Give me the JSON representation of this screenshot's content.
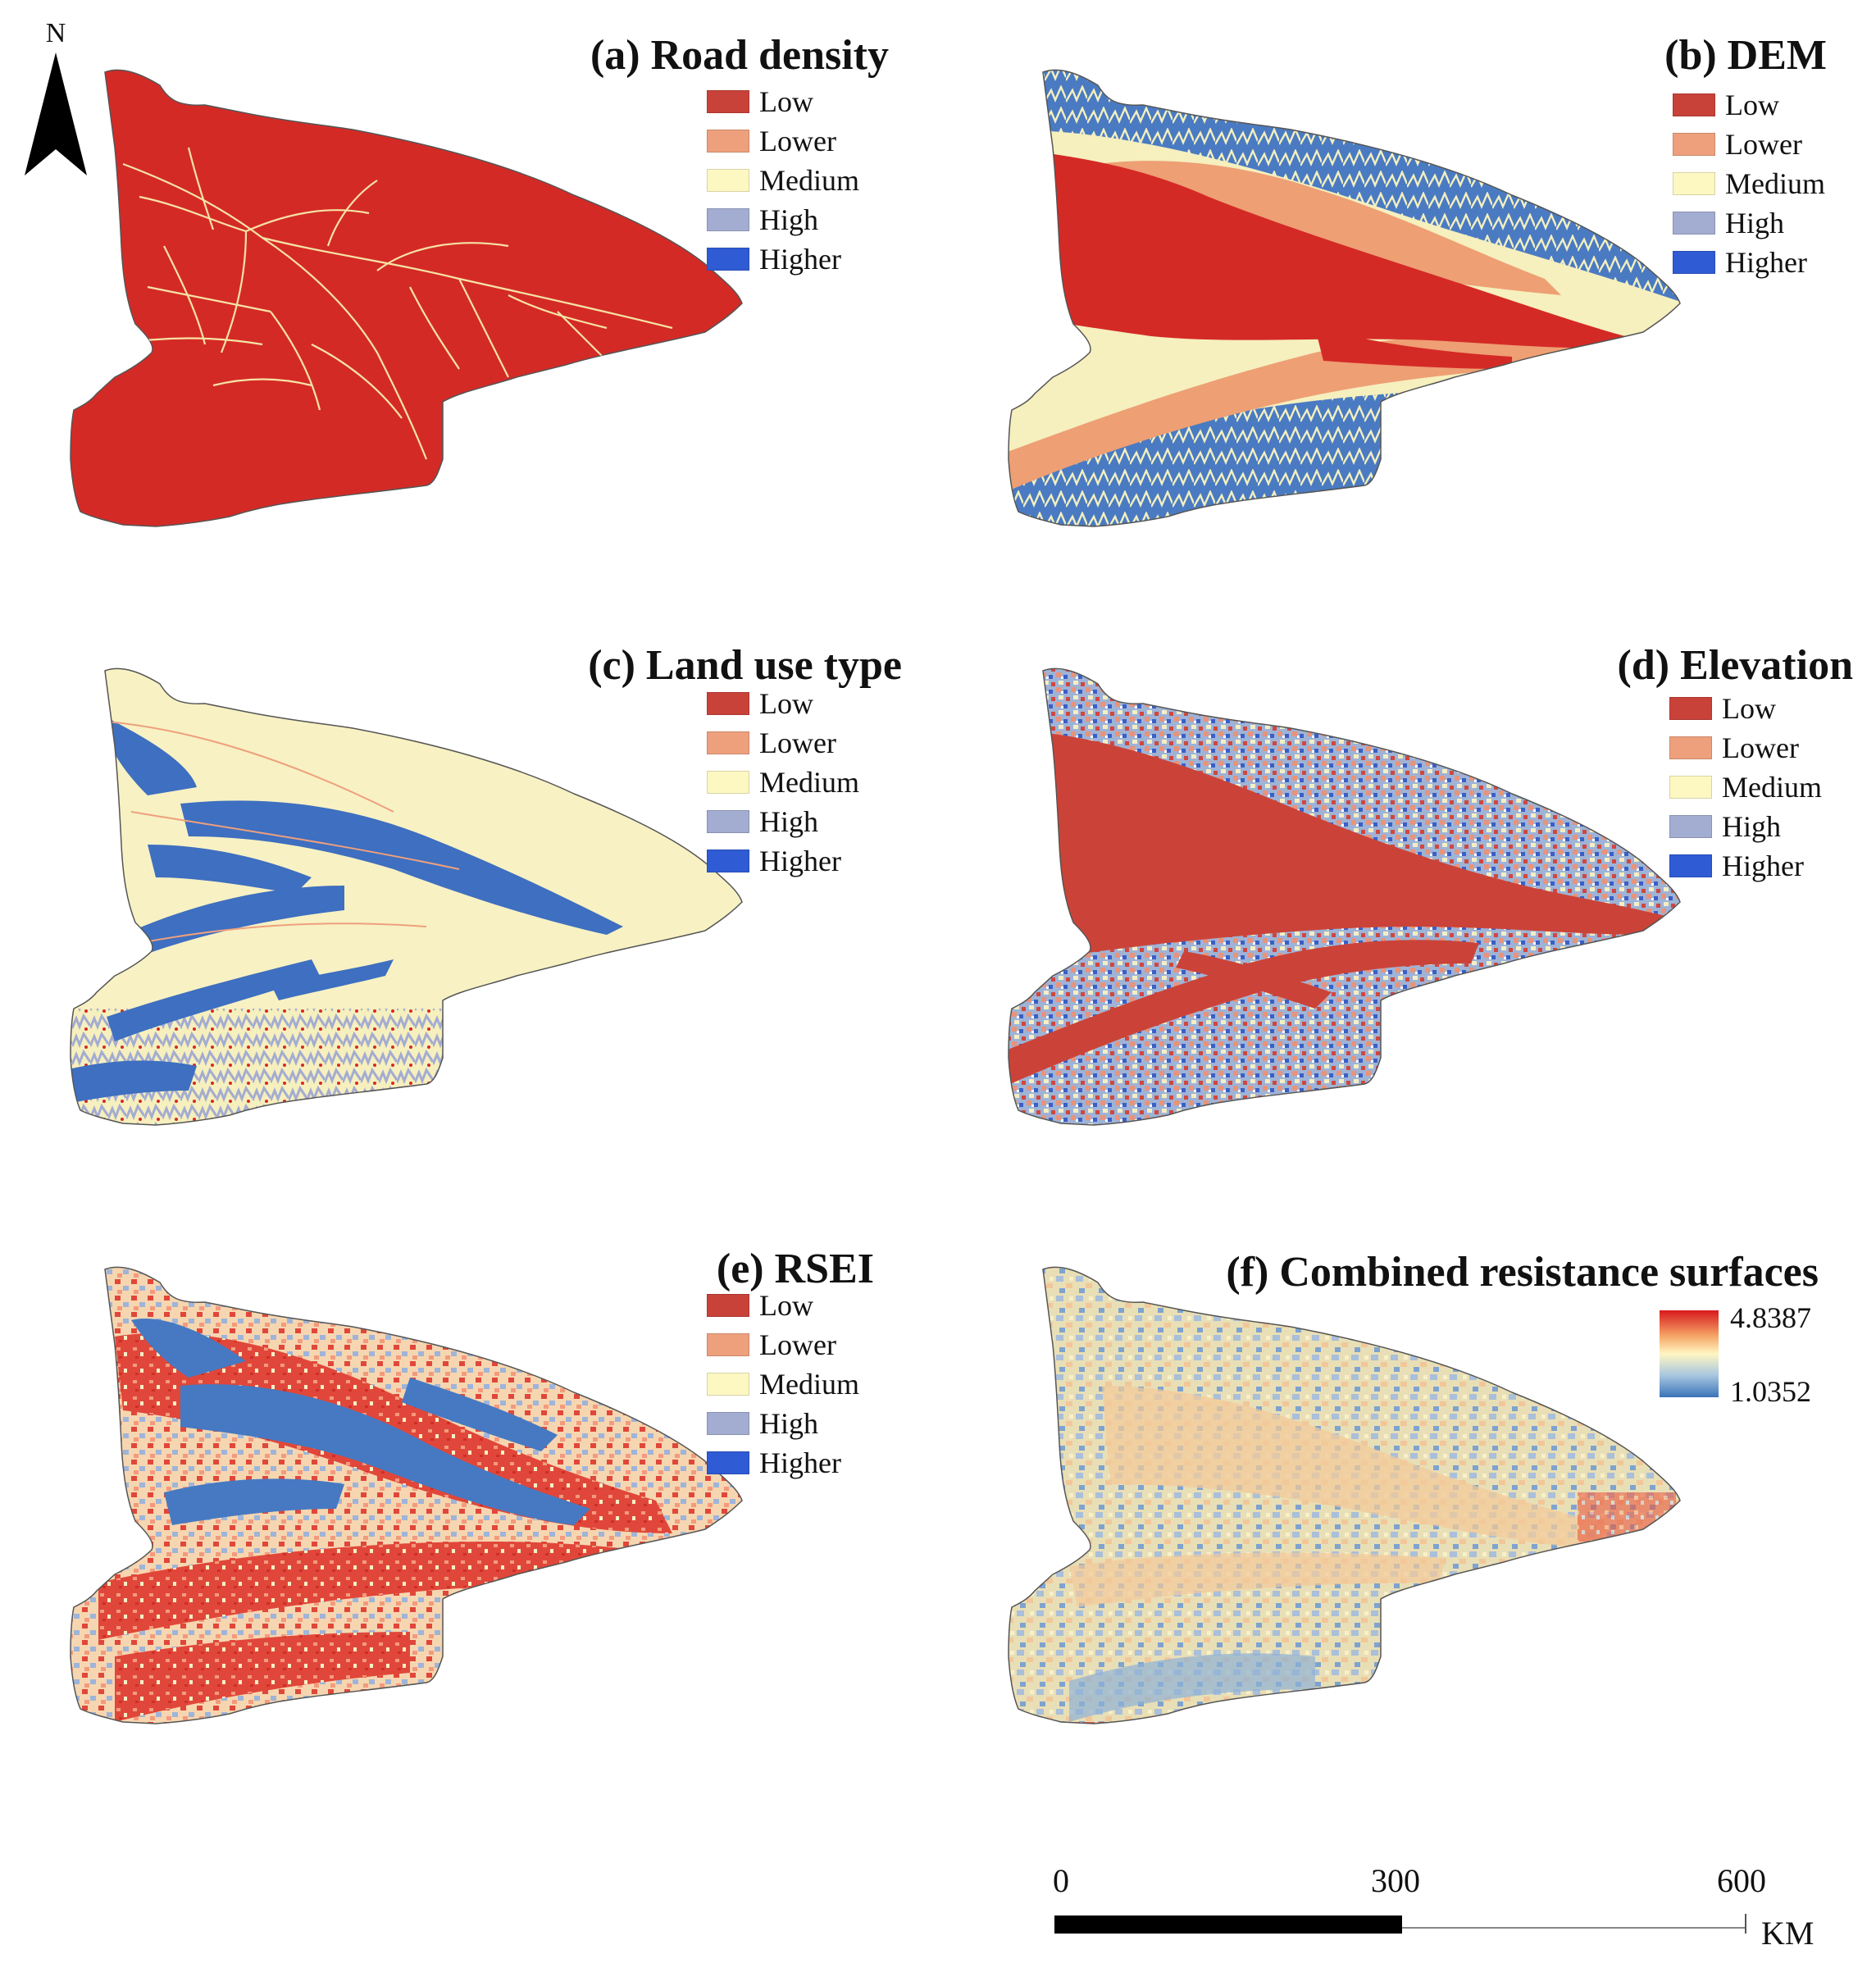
{
  "north_arrow": {
    "letter": "N"
  },
  "panels": [
    {
      "id": "a",
      "title": "(a) Road density",
      "type": "categorical",
      "base_color": "#d42a26",
      "legend": [
        {
          "label": "Low",
          "color": "#c8423a"
        },
        {
          "label": "Lower",
          "color": "#eea07d"
        },
        {
          "label": "Medium",
          "color": "#fdf8c2"
        },
        {
          "label": "High",
          "color": "#a3acd1"
        },
        {
          "label": "Higher",
          "color": "#2f5bd4"
        }
      ]
    },
    {
      "id": "b",
      "title": "(b) DEM",
      "type": "categorical",
      "legend": [
        {
          "label": "Low",
          "color": "#c8423a"
        },
        {
          "label": "Lower",
          "color": "#eea07d"
        },
        {
          "label": "Medium",
          "color": "#fdf8c2"
        },
        {
          "label": "High",
          "color": "#a3acd1"
        },
        {
          "label": "Higher",
          "color": "#2f5bd4"
        }
      ]
    },
    {
      "id": "c",
      "title": "(c) Land use type",
      "type": "categorical",
      "legend": [
        {
          "label": "Low",
          "color": "#c8423a"
        },
        {
          "label": "Lower",
          "color": "#eea07d"
        },
        {
          "label": "Medium",
          "color": "#fdf8c2"
        },
        {
          "label": "High",
          "color": "#a3acd1"
        },
        {
          "label": "Higher",
          "color": "#2f5bd4"
        }
      ]
    },
    {
      "id": "d",
      "title": "(d) Elevation",
      "type": "categorical",
      "legend": [
        {
          "label": "Low",
          "color": "#c8423a"
        },
        {
          "label": "Lower",
          "color": "#eea07d"
        },
        {
          "label": "Medium",
          "color": "#fdf8c2"
        },
        {
          "label": "High",
          "color": "#a3acd1"
        },
        {
          "label": "Higher",
          "color": "#2f5bd4"
        }
      ]
    },
    {
      "id": "e",
      "title": "(e) RSEI",
      "type": "categorical",
      "legend": [
        {
          "label": "Low",
          "color": "#c8423a"
        },
        {
          "label": "Lower",
          "color": "#eea07d"
        },
        {
          "label": "Medium",
          "color": "#fdf8c2"
        },
        {
          "label": "High",
          "color": "#a3acd1"
        },
        {
          "label": "Higher",
          "color": "#2f5bd4"
        }
      ]
    },
    {
      "id": "f",
      "title": "(f) Combined resistance surfaces",
      "type": "continuous",
      "legend_max": "4.8387",
      "legend_min": "1.0352"
    }
  ],
  "scale_bar": {
    "ticks": [
      "0",
      "300",
      "600"
    ],
    "unit": "KM"
  }
}
